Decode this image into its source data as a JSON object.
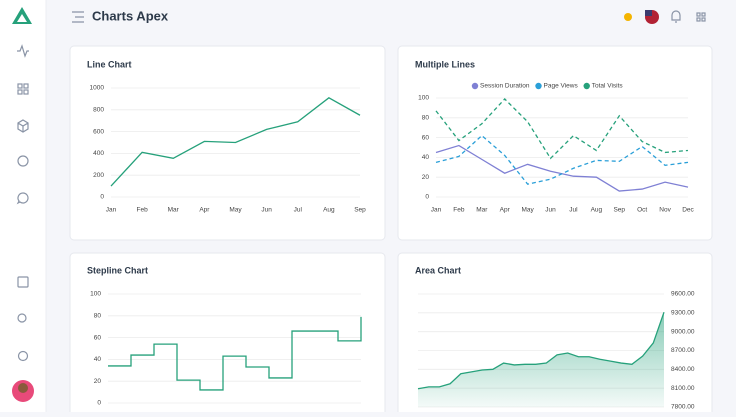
{
  "header": {
    "title": "Charts Apex"
  },
  "chart_data": [
    {
      "type": "line",
      "title": "Line Chart",
      "color": "#26a17b",
      "categories": [
        "Jan",
        "Feb",
        "Mar",
        "Apr",
        "May",
        "Jun",
        "Jul",
        "Aug",
        "Sep"
      ],
      "values": [
        100,
        410,
        355,
        510,
        500,
        620,
        690,
        910,
        750
      ],
      "ylim": [
        0,
        1000
      ],
      "yticks": [
        0,
        200,
        400,
        600,
        800,
        1000
      ],
      "grid": true
    },
    {
      "type": "line",
      "title": "Multiple Lines",
      "categories": [
        "Jan",
        "Feb",
        "Mar",
        "Apr",
        "May",
        "Jun",
        "Jul",
        "Aug",
        "Sep",
        "Oct",
        "Nov",
        "Dec"
      ],
      "series": [
        {
          "name": "Session Duration",
          "color": "#7f80d4",
          "dashed": false,
          "values": [
            45,
            52,
            38,
            24,
            33,
            26,
            21,
            20,
            6,
            8,
            15,
            10
          ]
        },
        {
          "name": "Page Views",
          "color": "#2a9fd8",
          "dashed": true,
          "values": [
            35,
            41,
            62,
            42,
            13,
            18,
            29,
            37,
            36,
            51,
            32,
            35
          ]
        },
        {
          "name": "Total Visits",
          "color": "#26a17b",
          "dashed": true,
          "values": [
            87,
            57,
            74,
            99,
            76,
            39,
            62,
            47,
            82,
            56,
            45,
            47
          ]
        }
      ],
      "ylim": [
        0,
        100
      ],
      "yticks": [
        0,
        20,
        40,
        60,
        80,
        100
      ],
      "grid": true,
      "legend": "top"
    },
    {
      "type": "step",
      "title": "Stepline Chart",
      "color": "#26a17b",
      "values": [
        34,
        44,
        54,
        21,
        12,
        43,
        33,
        23,
        66,
        66,
        57,
        79
      ],
      "ylim": [
        0,
        100
      ],
      "yticks": [
        0,
        20,
        40,
        60,
        80,
        100
      ],
      "grid": true
    },
    {
      "type": "area",
      "title": "Area Chart",
      "color": "#26a17b",
      "values": [
        8090,
        8120,
        8120,
        8170,
        8330,
        8360,
        8390,
        8400,
        8500,
        8470,
        8480,
        8480,
        8500,
        8630,
        8660,
        8600,
        8600,
        8560,
        8530,
        8500,
        8480,
        8610,
        8820,
        9310
      ],
      "ylim": [
        7800,
        9600
      ],
      "yticks": [
        {
          "value": 7800,
          "label": "7800.00"
        },
        {
          "value": 8100,
          "label": "8100.00"
        },
        {
          "value": 8400,
          "label": "8400.00"
        },
        {
          "value": 8700,
          "label": "8700.00"
        },
        {
          "value": 9000,
          "label": "9000.00"
        },
        {
          "value": 9300,
          "label": "9300.00"
        },
        {
          "value": 9600,
          "label": "9600.00"
        }
      ],
      "grid": true,
      "y_axis_position": "right"
    }
  ]
}
